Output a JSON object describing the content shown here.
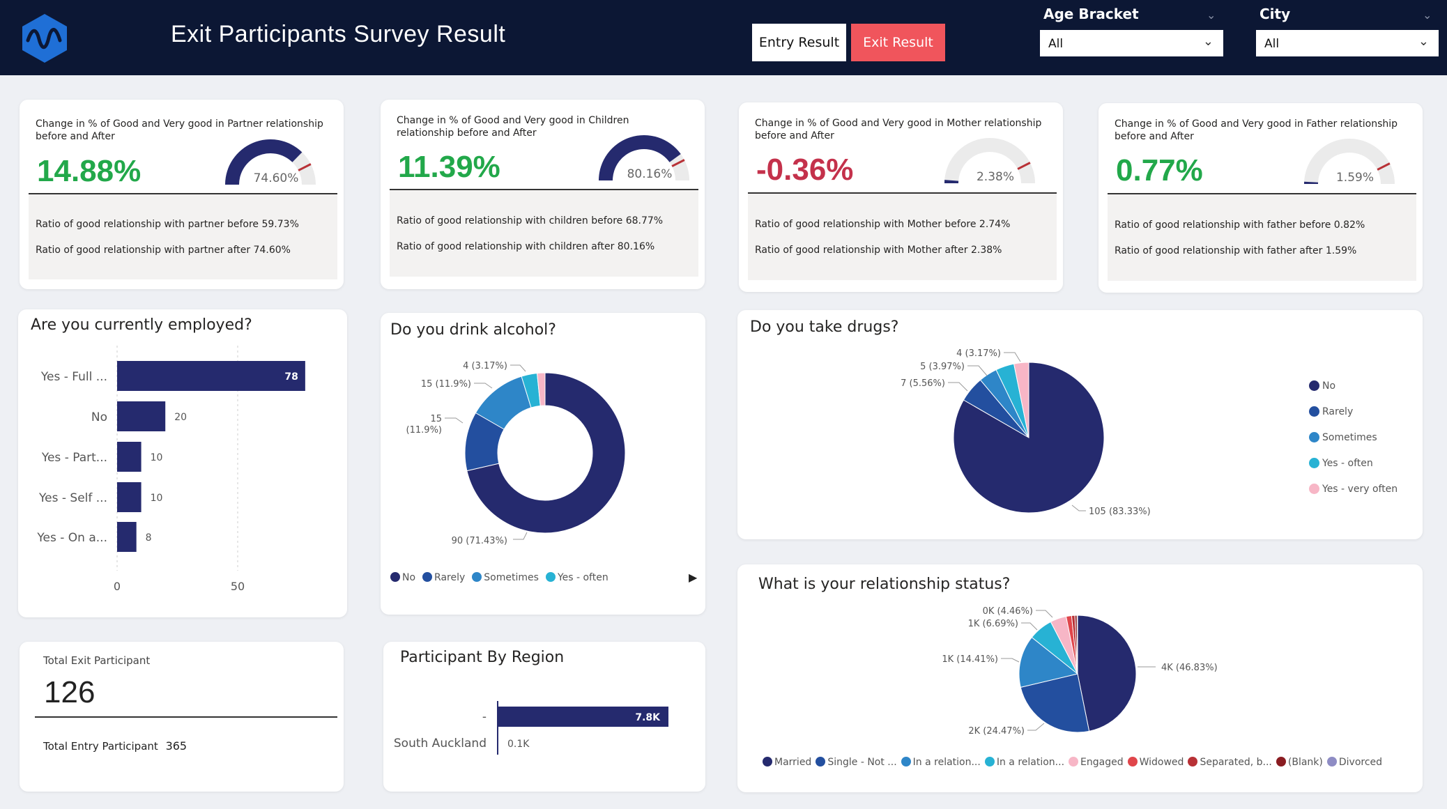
{
  "header": {
    "title": "Exit Participants Survey Result",
    "entry_label": "Entry Result",
    "exit_label": "Exit Result",
    "age_label": "Age Bracket",
    "age_value": "All",
    "city_label": "City",
    "city_value": "All"
  },
  "kpis": [
    {
      "title": "Change in % of Good and Very good in Partner relationship before and After",
      "value": "14.88%",
      "gauge_label": "74.60%",
      "gauge_fraction": 0.746,
      "row1": "Ratio of good relationship with partner before  59.73%",
      "row2": "Ratio of good relationship with partner after  74.60%",
      "color": "#22a84a"
    },
    {
      "title": "Change in % of Good and Very good in Children relationship before and After",
      "value": "11.39%",
      "gauge_label": "80.16%",
      "gauge_fraction": 0.8016,
      "row1": "Ratio of good relationship with children before  68.77%",
      "row2": "Ratio of good relationship with children after  80.16%",
      "color": "#22a84a"
    },
    {
      "title": "Change in % of Good and Very good in Mother relationship before and After",
      "value": "-0.36%",
      "gauge_label": "2.38%",
      "gauge_fraction": 0.0238,
      "row1": "Ratio of good relationship with Mother before  2.74%",
      "row2": "Ratio of good relationship with Mother after  2.38%",
      "color": "#c4314b"
    },
    {
      "title": "Change in % of Good and Very good in Father relationship before and After",
      "value": "0.77%",
      "gauge_label": "1.59%",
      "gauge_fraction": 0.0159,
      "row1": "Ratio of good relationship with father before  0.82%",
      "row2": "Ratio of good relationship with father after  1.59%",
      "color": "#22a84a"
    }
  ],
  "totals": {
    "exit_label": "Total Exit Participant",
    "exit_value": "126",
    "entry_label": "Total Entry Participant",
    "entry_value": "365"
  },
  "colors": {
    "navy": "#252a6e",
    "blue": "#234f9f",
    "mid_blue": "#2e86c8",
    "cyan": "#27b2d4",
    "pink": "#f7b6c6",
    "red": "#e0464b",
    "dark_red": "#b83136",
    "maroon": "#8a1c21",
    "lavender": "#8e8cc4"
  },
  "chart_data": [
    {
      "type": "bar",
      "title": "Are you currently employed?",
      "categories": [
        "Yes - Full ...",
        "No",
        "Yes - Part...",
        "Yes - Self ...",
        "Yes - On a..."
      ],
      "values": [
        78,
        20,
        10,
        10,
        8
      ],
      "value_labels": [
        "78",
        "20",
        "10",
        "10",
        "8"
      ],
      "ticks": [
        "0",
        "50"
      ],
      "xlim": [
        0,
        125
      ]
    },
    {
      "type": "pie",
      "title": "Do you drink alcohol?",
      "categories": [
        "No",
        "Rarely",
        "Sometimes",
        "Yes - often",
        "Yes - very often"
      ],
      "legend": [
        "No",
        "Rarely",
        "Sometimes",
        "Yes - often"
      ],
      "values": [
        90,
        15,
        15,
        4,
        2
      ],
      "labels": [
        "90 (71.43%)",
        "15",
        "15 (11.9%)",
        "4 (3.17%)",
        ""
      ],
      "label_extra": "(11.9%)"
    },
    {
      "type": "pie",
      "title": "Do you take drugs?",
      "categories": [
        "No",
        "Rarely",
        "Sometimes",
        "Yes - often",
        "Yes - very often"
      ],
      "values": [
        105,
        7,
        5,
        5,
        4
      ],
      "labels": [
        "105 (83.33%)",
        "7 (5.56%)",
        "5 (3.97%)",
        "",
        "4 (3.17%)"
      ]
    },
    {
      "type": "bar",
      "title": "Participant By Region",
      "categories": [
        "-",
        "South Auckland"
      ],
      "values": [
        7800,
        100
      ],
      "value_labels": [
        "7.8K",
        "0.1K"
      ]
    },
    {
      "type": "pie",
      "title": "What is your relationship status?",
      "categories": [
        "Married",
        "Single - Not ...",
        "In a relation...",
        "In a relation...",
        "Engaged",
        "Widowed",
        "Separated, b...",
        "(Blank)",
        "Divorced"
      ],
      "values": [
        46.83,
        24.47,
        14.41,
        6.69,
        4.46,
        1.5,
        0.9,
        0.6,
        0.14
      ],
      "labels": [
        "4K (46.83%)",
        "2K (24.47%)",
        "1K (14.41%)",
        "1K (6.69%)",
        "0K (4.46%)",
        "",
        "",
        "",
        ""
      ]
    }
  ]
}
